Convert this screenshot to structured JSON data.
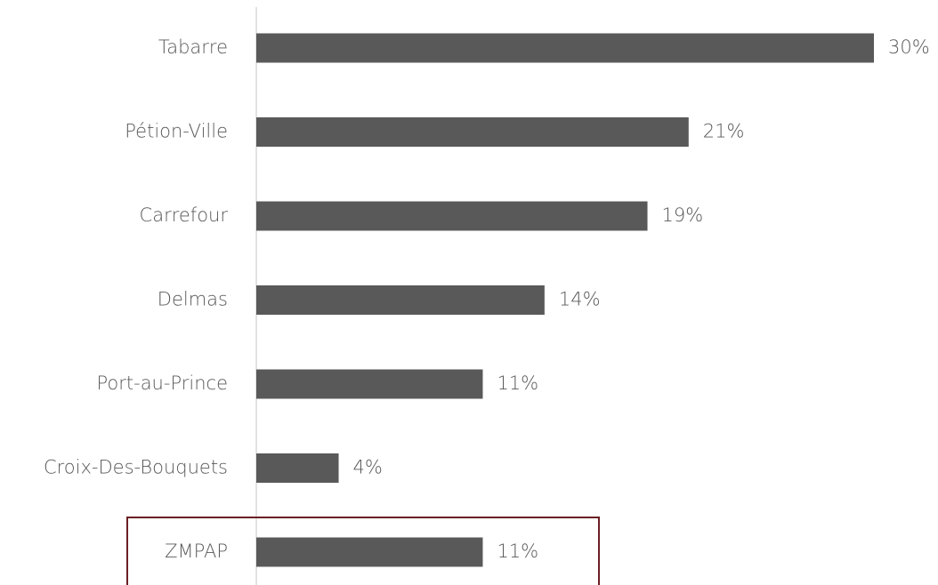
{
  "chart_data": {
    "type": "bar",
    "orientation": "horizontal",
    "categories": [
      "Tabarre",
      "Pétion-Ville",
      "Carrefour",
      "Delmas",
      "Port-au-Prince",
      "Croix-Des-Bouquets",
      "ZMPAP"
    ],
    "values": [
      30,
      21,
      19,
      14,
      11,
      4,
      11
    ],
    "value_labels": [
      "30%",
      "21%",
      "19%",
      "14%",
      "11%",
      "4%",
      "11%"
    ],
    "color": "#595959"
  }
}
